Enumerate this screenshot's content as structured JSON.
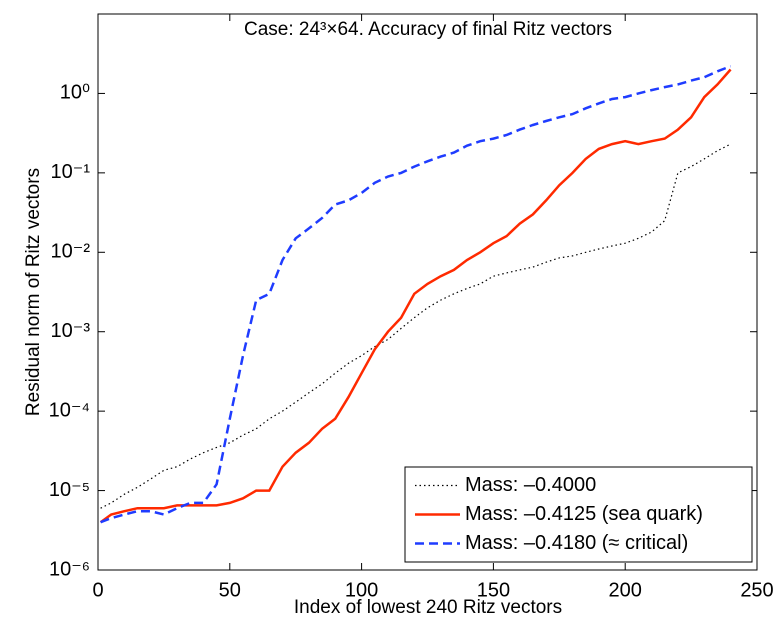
{
  "chart_data": {
    "type": "line",
    "title": "Case: 24³×64. Accuracy of final Ritz vectors",
    "xlabel": "Index of lowest 240 Ritz vectors",
    "ylabel": "Residual norm of Ritz vectors",
    "x": [
      1,
      5,
      10,
      15,
      20,
      25,
      30,
      35,
      40,
      45,
      50,
      55,
      60,
      65,
      70,
      75,
      80,
      85,
      90,
      95,
      100,
      105,
      110,
      115,
      120,
      125,
      130,
      135,
      140,
      145,
      150,
      155,
      160,
      165,
      170,
      175,
      180,
      185,
      190,
      195,
      200,
      205,
      210,
      215,
      220,
      225,
      230,
      235,
      240
    ],
    "series": [
      {
        "name": "Mass: –0.4000",
        "color": "#000000",
        "style": "dotted",
        "values": [
          6e-06,
          7e-06,
          9e-06,
          1.1e-05,
          1.4e-05,
          1.8e-05,
          2e-05,
          2.5e-05,
          3e-05,
          3.5e-05,
          4e-05,
          5e-05,
          6e-05,
          8e-05,
          0.0001,
          0.00013,
          0.00017,
          0.00022,
          0.0003,
          0.0004,
          0.0005,
          0.00065,
          0.0008,
          0.0011,
          0.0015,
          0.002,
          0.0025,
          0.003,
          0.0035,
          0.004,
          0.005,
          0.0055,
          0.006,
          0.0065,
          0.0075,
          0.0085,
          0.009,
          0.01,
          0.011,
          0.012,
          0.013,
          0.015,
          0.018,
          0.025,
          0.1,
          0.12,
          0.15,
          0.19,
          0.23
        ]
      },
      {
        "name": "Mass: –0.4125 (sea quark)",
        "color": "#ff2a00",
        "style": "solid",
        "values": [
          4e-06,
          5e-06,
          5.5e-06,
          6e-06,
          6e-06,
          6e-06,
          6.5e-06,
          6.5e-06,
          6.5e-06,
          6.5e-06,
          7e-06,
          8e-06,
          1e-05,
          1e-05,
          2e-05,
          3e-05,
          4e-05,
          6e-05,
          8e-05,
          0.00015,
          0.0003,
          0.0006,
          0.001,
          0.0015,
          0.003,
          0.004,
          0.005,
          0.006,
          0.008,
          0.01,
          0.013,
          0.016,
          0.023,
          0.03,
          0.045,
          0.07,
          0.1,
          0.15,
          0.2,
          0.23,
          0.25,
          0.23,
          0.25,
          0.27,
          0.35,
          0.5,
          0.9,
          1.3,
          2.0
        ]
      },
      {
        "name": "Mass: –0.4180 (≈ critical)",
        "color": "#1f3cff",
        "style": "dashed",
        "values": [
          4e-06,
          4.5e-06,
          5e-06,
          5.5e-06,
          5.5e-06,
          5e-06,
          6e-06,
          7e-06,
          7e-06,
          1.2e-05,
          8e-05,
          0.0005,
          0.0025,
          0.003,
          0.008,
          0.015,
          0.02,
          0.027,
          0.04,
          0.045,
          0.056,
          0.075,
          0.09,
          0.1,
          0.12,
          0.14,
          0.16,
          0.18,
          0.22,
          0.25,
          0.27,
          0.3,
          0.35,
          0.4,
          0.45,
          0.5,
          0.55,
          0.65,
          0.75,
          0.85,
          0.9,
          1.0,
          1.1,
          1.2,
          1.3,
          1.45,
          1.6,
          1.9,
          2.2
        ]
      }
    ],
    "xlim": [
      0,
      250
    ],
    "xticks": [
      0,
      50,
      100,
      150,
      200,
      250
    ],
    "ylim": [
      1e-06,
      10
    ],
    "yscale": "log",
    "yticks": [
      {
        "value": 1e-06,
        "label": "10⁻⁶"
      },
      {
        "value": 1e-05,
        "label": "10⁻⁵"
      },
      {
        "value": 0.0001,
        "label": "10⁻⁴"
      },
      {
        "value": 0.001,
        "label": "10⁻³"
      },
      {
        "value": 0.01,
        "label": "10⁻²"
      },
      {
        "value": 0.1,
        "label": "10⁻¹"
      },
      {
        "value": 1,
        "label": "10⁰"
      }
    ],
    "legend": "lower right",
    "grid": false
  }
}
